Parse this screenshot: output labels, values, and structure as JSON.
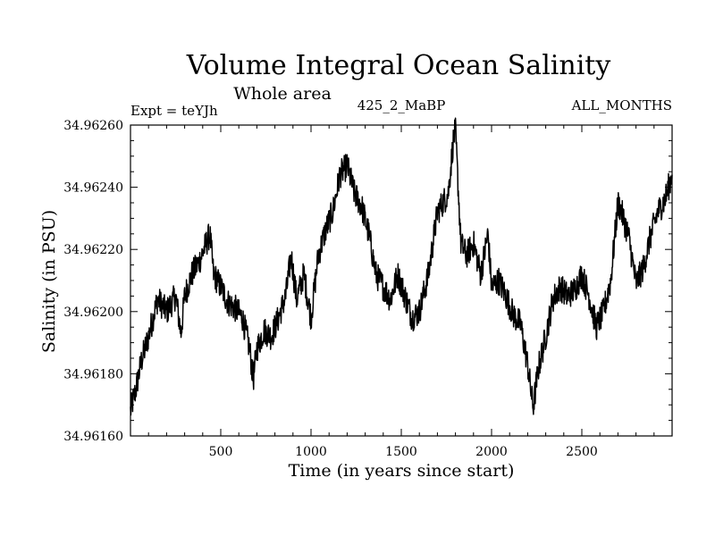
{
  "chart_data": {
    "type": "line",
    "title": "Volume Integral Ocean Salinity",
    "subtitle": "Whole area",
    "annotations": {
      "left": "Expt = teYJh",
      "center": "425_2_MaBP",
      "right": "ALL_MONTHS"
    },
    "xlabel": "Time (in years since start)",
    "ylabel": "Salinity (in PSU)",
    "xlim": [
      0,
      3000
    ],
    "ylim": [
      34.9616,
      34.9626
    ],
    "xticks": [
      500,
      1000,
      1500,
      2000,
      2500
    ],
    "xtick_labels": [
      "500",
      "1000",
      "1500",
      "2000",
      "2500"
    ],
    "yticks": [
      34.9616,
      34.9618,
      34.962,
      34.9622,
      34.9624,
      34.9626
    ],
    "ytick_labels": [
      "34.96160",
      "34.96180",
      "34.96200",
      "34.96220",
      "34.96240",
      "34.96260"
    ],
    "grid": false,
    "legend": "none",
    "series": [
      {
        "name": "salinity",
        "x": [
          0,
          30,
          60,
          100,
          150,
          200,
          250,
          280,
          300,
          340,
          380,
          420,
          440,
          460,
          500,
          540,
          580,
          620,
          660,
          680,
          700,
          740,
          780,
          820,
          860,
          890,
          920,
          960,
          1000,
          1040,
          1080,
          1120,
          1160,
          1200,
          1240,
          1280,
          1320,
          1360,
          1400,
          1440,
          1480,
          1520,
          1560,
          1600,
          1650,
          1700,
          1720,
          1760,
          1790,
          1800,
          1830,
          1860,
          1900,
          1940,
          1980,
          2000,
          2040,
          2080,
          2120,
          2160,
          2200,
          2230,
          2260,
          2300,
          2340,
          2380,
          2420,
          2460,
          2500,
          2540,
          2580,
          2620,
          2660,
          2700,
          2720,
          2760,
          2800,
          2840,
          2880,
          2920,
          2960,
          3000
        ],
        "values": [
          34.96168,
          34.96175,
          34.96184,
          34.96192,
          34.96204,
          34.962,
          34.96205,
          34.96193,
          34.96205,
          34.96212,
          34.96216,
          34.96222,
          34.96225,
          34.96212,
          34.96208,
          34.96203,
          34.96201,
          34.96198,
          34.96188,
          34.96178,
          34.96188,
          34.96194,
          34.96192,
          34.96198,
          34.96205,
          34.96218,
          34.96204,
          34.96212,
          34.96198,
          34.96218,
          34.96226,
          34.96232,
          34.96244,
          34.96247,
          34.96238,
          34.96234,
          34.96225,
          34.96212,
          34.96208,
          34.96204,
          34.96212,
          34.96205,
          34.96198,
          34.962,
          34.96212,
          34.96232,
          34.96234,
          34.96238,
          34.96256,
          34.96258,
          34.96222,
          34.96218,
          34.96222,
          34.96212,
          34.96225,
          34.96208,
          34.9621,
          34.96205,
          34.96199,
          34.96196,
          34.96183,
          34.96169,
          34.96182,
          34.96192,
          34.96204,
          34.96208,
          34.96205,
          34.96207,
          34.96212,
          34.96205,
          34.96195,
          34.962,
          34.9621,
          34.96235,
          34.96232,
          34.96224,
          34.96209,
          34.96214,
          34.96224,
          34.96232,
          34.96236,
          34.96244
        ]
      }
    ]
  }
}
